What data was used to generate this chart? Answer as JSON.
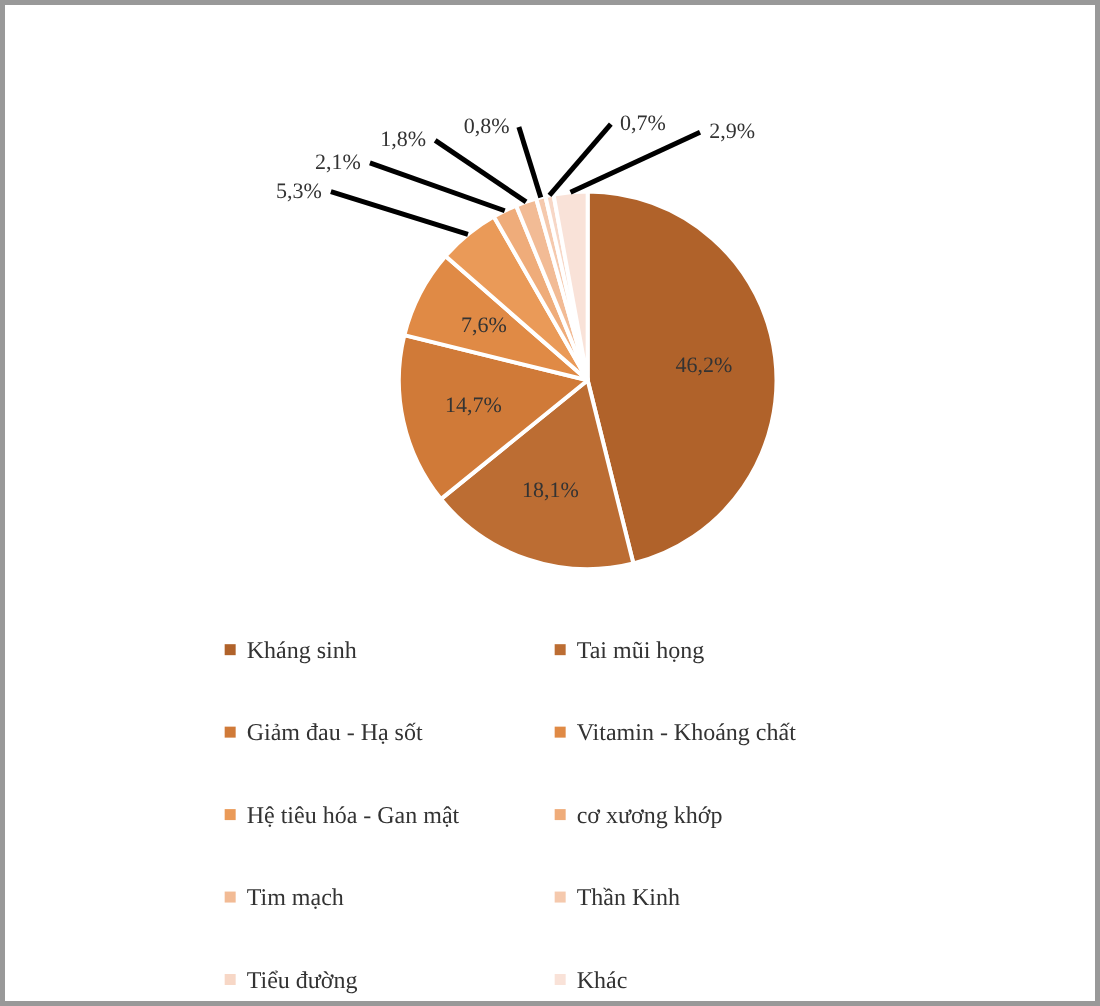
{
  "chart_data": {
    "type": "pie",
    "categories": [
      "Kháng sinh",
      "Tai mũi họng",
      "Giảm đau - Hạ sốt",
      "Vitamin - Khoáng chất",
      "Hệ tiêu hóa - Gan mật",
      "cơ xương khớp",
      "Tim mạch",
      "Thần Kinh",
      "Tiểu đường",
      "Khác"
    ],
    "values": [
      46.2,
      18.1,
      14.7,
      7.6,
      5.3,
      2.1,
      1.8,
      0.8,
      0.7,
      2.9
    ],
    "value_labels": [
      "46,2%",
      "18,1%",
      "14,7%",
      "7,6%",
      "5,3%",
      "2,1%",
      "1,8%",
      "0,8%",
      "0,7%",
      "2,9%"
    ],
    "colors": [
      "#b0622a",
      "#bc6d33",
      "#d07a38",
      "#e08a45",
      "#ea9a58",
      "#efac7a",
      "#f2bb95",
      "#f5c9ad",
      "#f7d7c6",
      "#f9e2d8"
    ],
    "legend": "bottom"
  }
}
